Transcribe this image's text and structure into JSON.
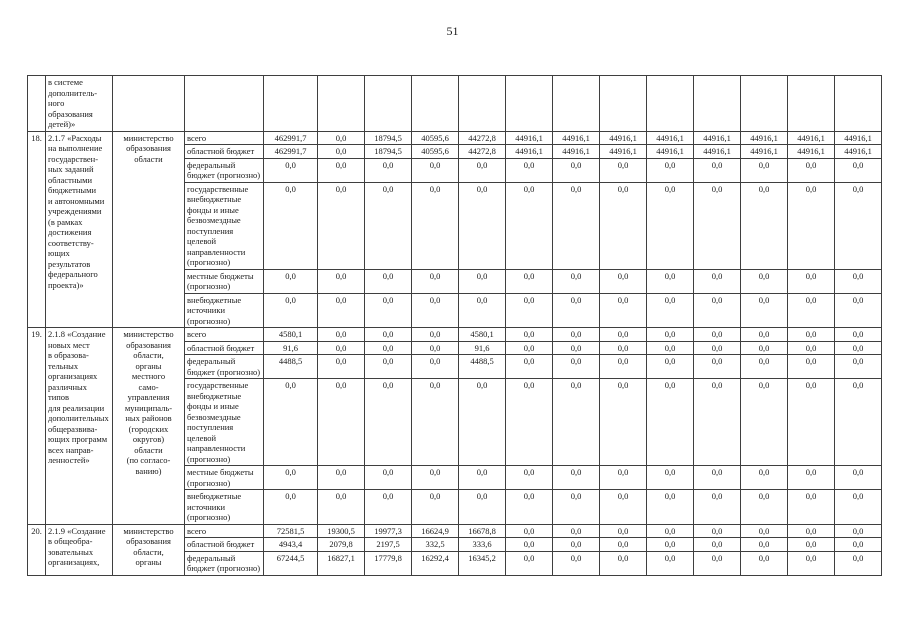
{
  "page_number": "51",
  "table": {
    "carryover_row": {
      "num": "",
      "description": "в системе\nдополнитель-\nного\nобразования\nдетей)»",
      "ministry": "",
      "budget_label": "",
      "values": [
        "",
        "",
        "",
        "",
        "",
        "",
        "",
        "",
        "",
        "",
        "",
        "",
        ""
      ]
    },
    "rows": [
      {
        "num": "18.",
        "description": "2.1.7 «Расходы\nна выполнение\nгосударствен-\nных заданий\nобластными\nбюджетными\nи автономными\nучреждениями\n(в рамках\nдостижения\nсоответству-\nющих\nрезультатов\nфедерального\nпроекта)»",
        "ministry": "министерство\nобразования\nобласти",
        "budget_rows": [
          {
            "label": "всего",
            "values": [
              "462991,7",
              "0,0",
              "18794,5",
              "40595,6",
              "44272,8",
              "44916,1",
              "44916,1",
              "44916,1",
              "44916,1",
              "44916,1",
              "44916,1",
              "44916,1",
              "44916,1"
            ]
          },
          {
            "label": "областной бюджет",
            "values": [
              "462991,7",
              "0,0",
              "18794,5",
              "40595,6",
              "44272,8",
              "44916,1",
              "44916,1",
              "44916,1",
              "44916,1",
              "44916,1",
              "44916,1",
              "44916,1",
              "44916,1"
            ]
          },
          {
            "label": "федеральный\nбюджет (прогнозно)",
            "values": [
              "0,0",
              "0,0",
              "0,0",
              "0,0",
              "0,0",
              "0,0",
              "0,0",
              "0,0",
              "0,0",
              "0,0",
              "0,0",
              "0,0",
              "0,0"
            ]
          },
          {
            "label": "государственные\nвнебюджетные\nфонды и иные\nбезвозмездные\nпоступления\nцелевой\nнаправленности\n(прогнозно)",
            "values": [
              "0,0",
              "0,0",
              "0,0",
              "0,0",
              "0,0",
              "0,0",
              "0,0",
              "0,0",
              "0,0",
              "0,0",
              "0,0",
              "0,0",
              "0,0"
            ]
          },
          {
            "label": "местные бюджеты\n(прогнозно)",
            "values": [
              "0,0",
              "0,0",
              "0,0",
              "0,0",
              "0,0",
              "0,0",
              "0,0",
              "0,0",
              "0,0",
              "0,0",
              "0,0",
              "0,0",
              "0,0"
            ]
          },
          {
            "label": "внебюджетные\nисточники\n(прогнозно)",
            "values": [
              "0,0",
              "0,0",
              "0,0",
              "0,0",
              "0,0",
              "0,0",
              "0,0",
              "0,0",
              "0,0",
              "0,0",
              "0,0",
              "0,0",
              "0,0"
            ]
          }
        ]
      },
      {
        "num": "19.",
        "description": "2.1.8 «Создание\nновых мест\nв образова-\nтельных\nорганизациях\nразличных\nтипов\nдля реализации\nдополнительных\nобщеразвива-\nющих программ\nвсех направ-\nленностей»",
        "ministry": "министерство\nобразования\nобласти,\nорганы\nместного\nсамо-\nуправления\nмуниципаль-\nных районов\n(городских\nокругов)\nобласти\n(по согласо-\nванию)",
        "budget_rows": [
          {
            "label": "всего",
            "values": [
              "4580,1",
              "0,0",
              "0,0",
              "0,0",
              "4580,1",
              "0,0",
              "0,0",
              "0,0",
              "0,0",
              "0,0",
              "0,0",
              "0,0",
              "0,0"
            ]
          },
          {
            "label": "областной бюджет",
            "values": [
              "91,6",
              "0,0",
              "0,0",
              "0,0",
              "91,6",
              "0,0",
              "0,0",
              "0,0",
              "0,0",
              "0,0",
              "0,0",
              "0,0",
              "0,0"
            ]
          },
          {
            "label": "федеральный\nбюджет (прогнозно)",
            "values": [
              "4488,5",
              "0,0",
              "0,0",
              "0,0",
              "4488,5",
              "0,0",
              "0,0",
              "0,0",
              "0,0",
              "0,0",
              "0,0",
              "0,0",
              "0,0"
            ]
          },
          {
            "label": "государственные\nвнебюджетные\nфонды и иные\nбезвозмездные\nпоступления\nцелевой\nнаправленности\n(прогнозно)",
            "values": [
              "0,0",
              "0,0",
              "0,0",
              "0,0",
              "0,0",
              "0,0",
              "0,0",
              "0,0",
              "0,0",
              "0,0",
              "0,0",
              "0,0",
              "0,0"
            ]
          },
          {
            "label": "местные бюджеты\n(прогнозно)",
            "values": [
              "0,0",
              "0,0",
              "0,0",
              "0,0",
              "0,0",
              "0,0",
              "0,0",
              "0,0",
              "0,0",
              "0,0",
              "0,0",
              "0,0",
              "0,0"
            ]
          },
          {
            "label": "внебюджетные\nисточники\n(прогнозно)",
            "values": [
              "0,0",
              "0,0",
              "0,0",
              "0,0",
              "0,0",
              "0,0",
              "0,0",
              "0,0",
              "0,0",
              "0,0",
              "0,0",
              "0,0",
              "0,0"
            ]
          }
        ]
      },
      {
        "num": "20.",
        "description": "2.1.9 «Создание\nв общеобра-\nзовательных\nорганизациях,",
        "ministry": "министерство\nобразования\nобласти,\nорганы",
        "budget_rows": [
          {
            "label": "всего",
            "values": [
              "72581,5",
              "19300,5",
              "19977,3",
              "16624,9",
              "16678,8",
              "0,0",
              "0,0",
              "0,0",
              "0,0",
              "0,0",
              "0,0",
              "0,0",
              "0,0"
            ]
          },
          {
            "label": "областной бюджет",
            "values": [
              "4943,4",
              "2079,8",
              "2197,5",
              "332,5",
              "333,6",
              "0,0",
              "0,0",
              "0,0",
              "0,0",
              "0,0",
              "0,0",
              "0,0",
              "0,0"
            ]
          },
          {
            "label": "федеральный\nбюджет (прогнозно)",
            "values": [
              "67244,5",
              "16827,1",
              "17779,8",
              "16292,4",
              "16345,2",
              "0,0",
              "0,0",
              "0,0",
              "0,0",
              "0,0",
              "0,0",
              "0,0",
              "0,0"
            ]
          }
        ]
      }
    ]
  }
}
